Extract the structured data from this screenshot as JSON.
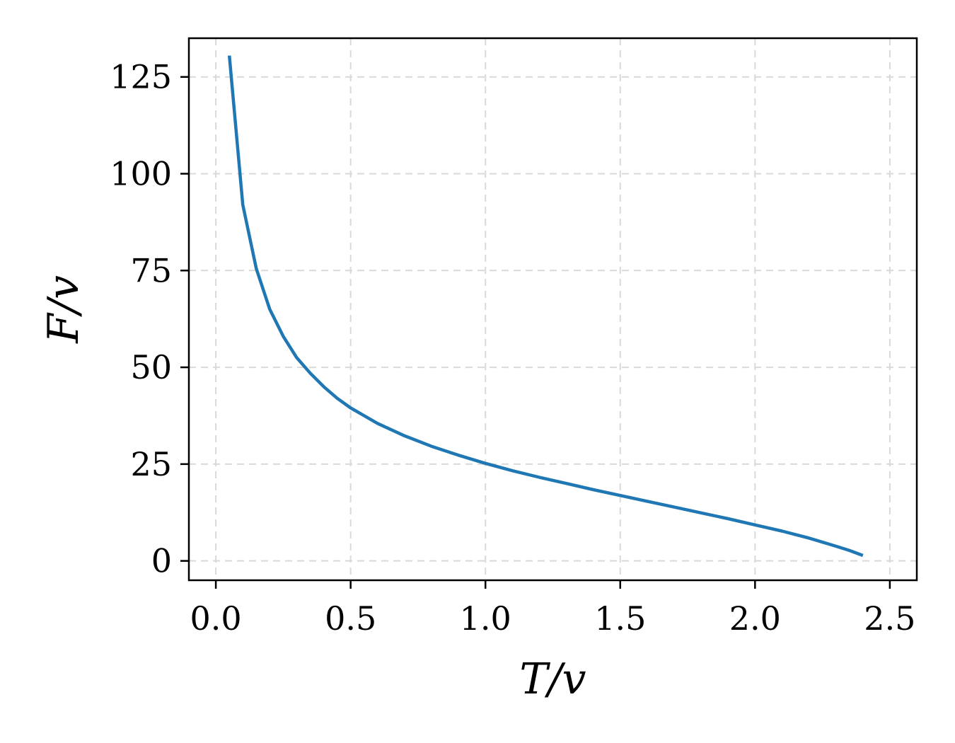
{
  "chart_data": {
    "type": "line",
    "title": "",
    "xlabel": "T/v",
    "ylabel": "F/v",
    "xlim": [
      -0.1,
      2.6
    ],
    "ylim": [
      -5,
      135
    ],
    "xticks": [
      0.0,
      0.5,
      1.0,
      1.5,
      2.0,
      2.5
    ],
    "xtick_labels": [
      "0.0",
      "0.5",
      "1.0",
      "1.5",
      "2.0",
      "2.5"
    ],
    "yticks": [
      0,
      25,
      50,
      75,
      100,
      125
    ],
    "ytick_labels": [
      "0",
      "25",
      "50",
      "75",
      "100",
      "125"
    ],
    "grid": true,
    "legend": "none",
    "series": [
      {
        "color": "#1f77b4",
        "x": [
          0.05,
          0.1,
          0.15,
          0.2,
          0.25,
          0.3,
          0.35,
          0.4,
          0.45,
          0.5,
          0.6,
          0.7,
          0.8,
          0.9,
          1.0,
          1.1,
          1.2,
          1.3,
          1.4,
          1.5,
          1.6,
          1.7,
          1.8,
          1.9,
          2.0,
          2.1,
          2.2,
          2.3,
          2.35,
          2.4
        ],
        "y": [
          130.5,
          92.0,
          75.5,
          65.0,
          58.0,
          52.5,
          48.5,
          45.0,
          42.0,
          39.5,
          35.5,
          32.3,
          29.6,
          27.3,
          25.2,
          23.3,
          21.6,
          20.0,
          18.4,
          16.9,
          15.4,
          13.9,
          12.4,
          10.9,
          9.3,
          7.7,
          5.9,
          3.8,
          2.7,
          1.4
        ]
      }
    ]
  }
}
